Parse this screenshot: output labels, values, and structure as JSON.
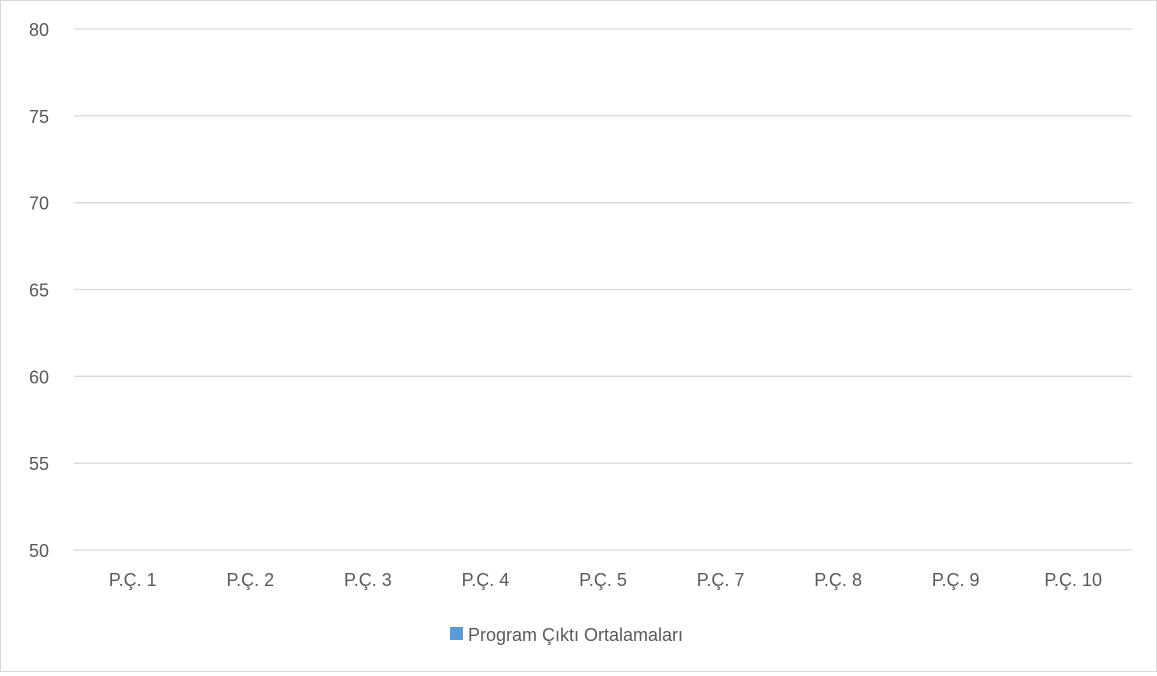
{
  "chart_data": {
    "type": "bar",
    "title": "",
    "xlabel": "",
    "ylabel": "",
    "categories": [
      "P.Ç. 1",
      "P.Ç. 2",
      "P.Ç. 3",
      "P.Ç. 4",
      "P.Ç. 5",
      "P.Ç. 7",
      "P.Ç. 8",
      "P.Ç. 9",
      "P.Ç. 10"
    ],
    "series": [
      {
        "name": "Program Çıktı Ortalamaları",
        "color": "#5b9bd5",
        "values": [
          null,
          null,
          null,
          null,
          null,
          null,
          null,
          null,
          null
        ]
      }
    ],
    "ylim": [
      50,
      80
    ],
    "yticks": [
      "50",
      "55",
      "60",
      "65",
      "70",
      "75",
      "80"
    ],
    "grid": true,
    "legend_position": "bottom"
  }
}
